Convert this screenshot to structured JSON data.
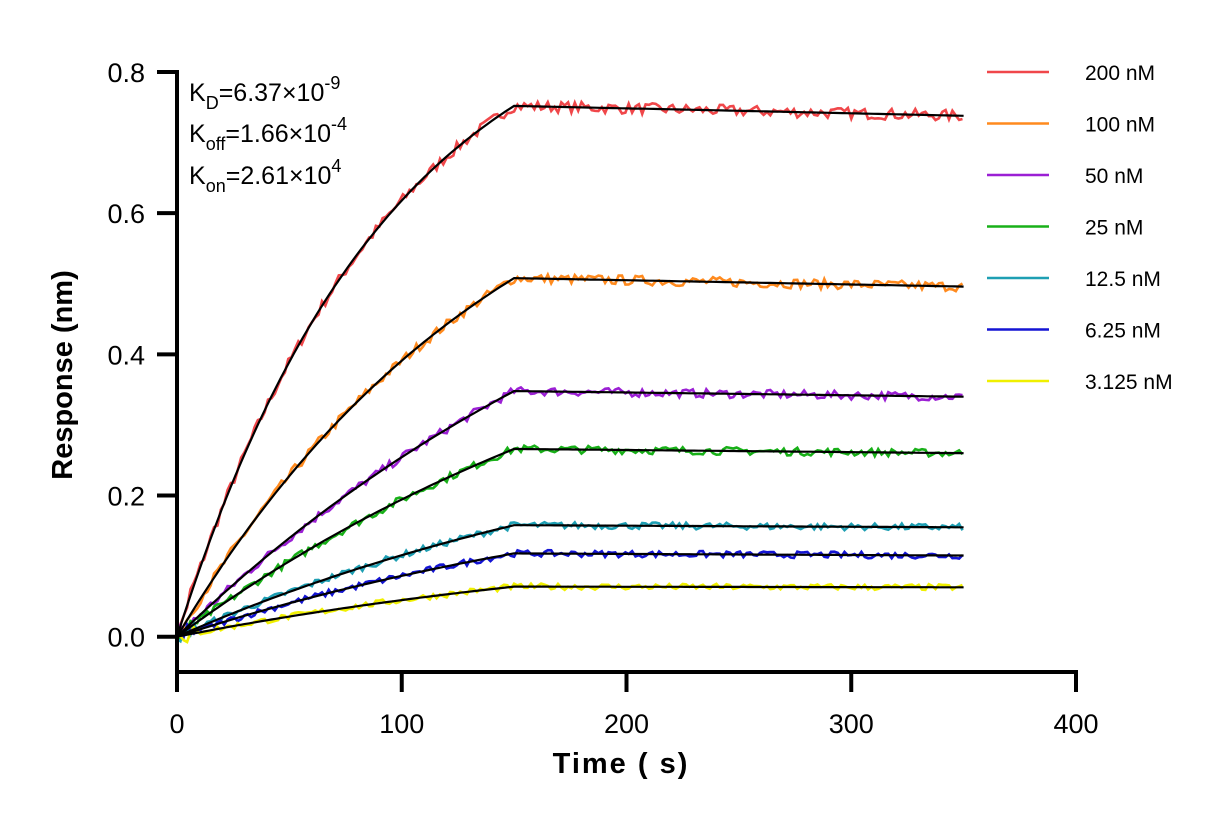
{
  "chart_data": {
    "type": "line",
    "xlabel": "Time ( s)",
    "ylabel": "Response (nm)",
    "xlim": [
      0,
      400
    ],
    "ylim": [
      -0.05,
      0.8
    ],
    "xticks": [
      0,
      100,
      200,
      300,
      400
    ],
    "xtick_labels": [
      "0",
      "100",
      "200",
      "300",
      "400"
    ],
    "yticks": [
      0.0,
      0.2,
      0.4,
      0.6,
      0.8
    ],
    "ytick_labels": [
      "0.0",
      "0.2",
      "0.4",
      "0.6",
      "0.8"
    ],
    "grid": false,
    "legend_position": "top-right",
    "association_end": 150,
    "dissociation_end": 350,
    "annotations": {
      "kd": {
        "base": "K",
        "sub": "D",
        "value": "=6.37×10",
        "exp": "-9"
      },
      "koff": {
        "base": "K",
        "sub": "off",
        "value": "=1.66×10",
        "exp": "-4"
      },
      "kon": {
        "base": "K",
        "sub": "on",
        "value": "=2.61×10",
        "exp": "4"
      }
    },
    "series": [
      {
        "name": "200 nM",
        "color": "#f0474a",
        "plateau": 0.752,
        "end": 0.738
      },
      {
        "name": "100 nM",
        "color": "#ff8a1e",
        "plateau": 0.508,
        "end": 0.496
      },
      {
        "name": "50 nM",
        "color": "#9b1fd4",
        "plateau": 0.348,
        "end": 0.34
      },
      {
        "name": "25 nM",
        "color": "#18b018",
        "plateau": 0.266,
        "end": 0.26
      },
      {
        "name": "12.5 nM",
        "color": "#1e9fb3",
        "plateau": 0.158,
        "end": 0.155
      },
      {
        "name": "6.25 nM",
        "color": "#1414d4",
        "plateau": 0.118,
        "end": 0.115
      },
      {
        "name": "3.125 nM",
        "color": "#f0f000",
        "plateau": 0.071,
        "end": 0.07
      }
    ],
    "fit_color": "#000000"
  }
}
